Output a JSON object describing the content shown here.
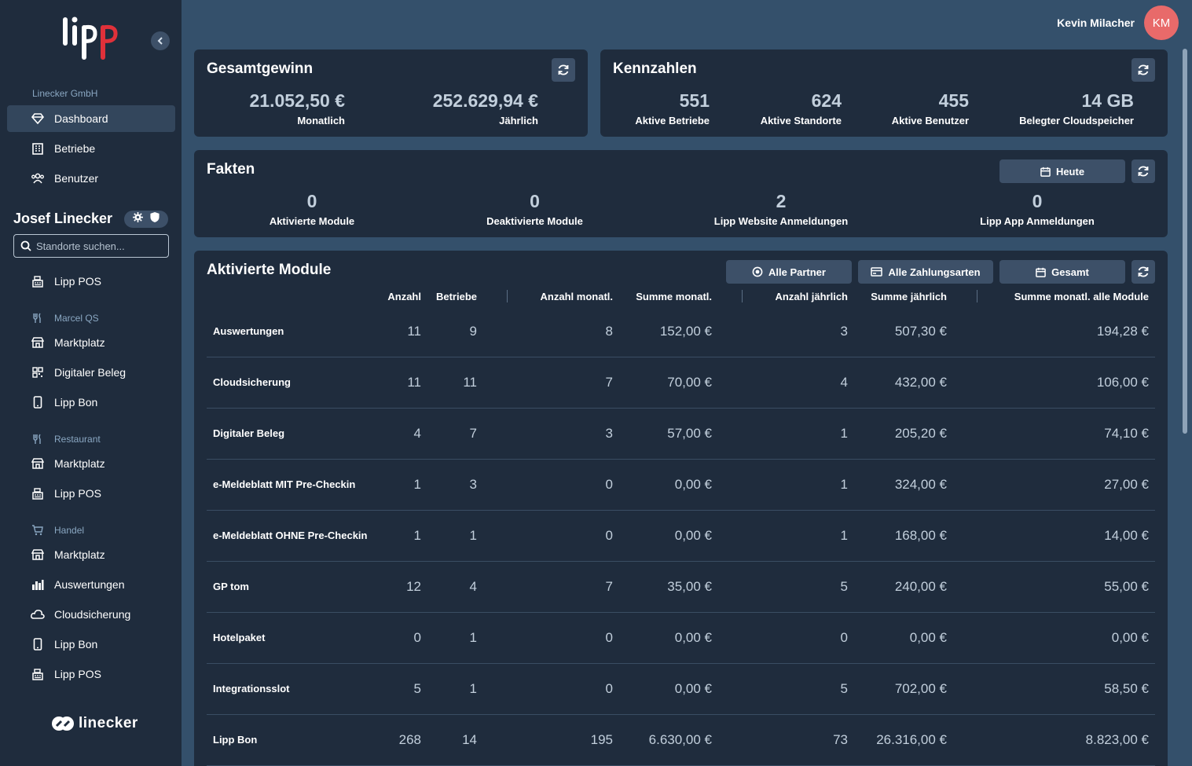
{
  "sidebar": {
    "company": "Linecker GmbH",
    "main_items": [
      {
        "label": "Dashboard",
        "icon": "gem-icon",
        "active": true
      },
      {
        "label": "Betriebe",
        "icon": "building-icon"
      },
      {
        "label": "Benutzer",
        "icon": "users-icon"
      }
    ],
    "user_name": "Josef Linecker",
    "search_placeholder": "Standorte suchen...",
    "top_item": {
      "label": "Lipp POS",
      "icon": "cash-register-icon"
    },
    "groups": [
      {
        "label": "Marcel QS",
        "icon": "utensils-icon",
        "items": [
          {
            "label": "Marktplatz",
            "icon": "store-icon"
          },
          {
            "label": "Digitaler Beleg",
            "icon": "qr-code-icon"
          },
          {
            "label": "Lipp Bon",
            "icon": "mobile-icon"
          }
        ]
      },
      {
        "label": "Restaurant",
        "icon": "utensils-icon",
        "items": [
          {
            "label": "Marktplatz",
            "icon": "store-icon"
          },
          {
            "label": "Lipp POS",
            "icon": "cash-register-icon"
          }
        ]
      },
      {
        "label": "Handel",
        "icon": "cart-icon",
        "items": [
          {
            "label": "Marktplatz",
            "icon": "store-icon"
          },
          {
            "label": "Auswertungen",
            "icon": "bar-chart-icon"
          },
          {
            "label": "Cloudsicherung",
            "icon": "cloud-icon"
          },
          {
            "label": "Lipp Bon",
            "icon": "mobile-icon"
          },
          {
            "label": "Lipp POS",
            "icon": "cash-register-icon"
          }
        ]
      }
    ],
    "footer_logo": "linecker"
  },
  "header": {
    "user_name": "Kevin Milacher",
    "avatar_initials": "KM",
    "avatar_color": "#e86a6a"
  },
  "gesamtgewinn": {
    "title": "Gesamtgewinn",
    "monthly_value": "21.052,50 €",
    "monthly_label": "Monatlich",
    "yearly_value": "252.629,94 €",
    "yearly_label": "Jährlich"
  },
  "kennzahlen": {
    "title": "Kennzahlen",
    "stats": [
      {
        "value": "551",
        "label": "Aktive Betriebe"
      },
      {
        "value": "624",
        "label": "Aktive Standorte"
      },
      {
        "value": "455",
        "label": "Aktive Benutzer"
      },
      {
        "value": "14 GB",
        "label": "Belegter Cloudspeicher"
      }
    ]
  },
  "fakten": {
    "title": "Fakten",
    "filter_label": "Heute",
    "stats": [
      {
        "value": "0",
        "label": "Aktivierte Module"
      },
      {
        "value": "0",
        "label": "Deaktivierte Module"
      },
      {
        "value": "2",
        "label": "Lipp Website Anmeldungen"
      },
      {
        "value": "0",
        "label": "Lipp App Anmeldungen"
      }
    ]
  },
  "module": {
    "title": "Aktivierte Module",
    "filters": {
      "partner": "Alle Partner",
      "payment": "Alle Zahlungsarten",
      "period": "Gesamt"
    },
    "columns": [
      "Anzahl",
      "Betriebe",
      "Anzahl monatl.",
      "Summe monatl.",
      "Anzahl jährlich",
      "Summe jährlich",
      "Summe monatl. alle Module"
    ],
    "rows": [
      {
        "name": "Auswertungen",
        "c": [
          "11",
          "9",
          "8",
          "152,00 €",
          "3",
          "507,30 €",
          "194,28 €"
        ]
      },
      {
        "name": "Cloudsicherung",
        "c": [
          "11",
          "11",
          "7",
          "70,00 €",
          "4",
          "432,00 €",
          "106,00 €"
        ]
      },
      {
        "name": "Digitaler Beleg",
        "c": [
          "4",
          "7",
          "3",
          "57,00 €",
          "1",
          "205,20 €",
          "74,10 €"
        ]
      },
      {
        "name": "e-Meldeblatt MIT Pre-Checkin",
        "c": [
          "1",
          "3",
          "0",
          "0,00 €",
          "1",
          "324,00 €",
          "27,00 €"
        ]
      },
      {
        "name": "e-Meldeblatt OHNE Pre-Checkin",
        "c": [
          "1",
          "1",
          "0",
          "0,00 €",
          "1",
          "168,00 €",
          "14,00 €"
        ]
      },
      {
        "name": "GP tom",
        "c": [
          "12",
          "4",
          "7",
          "35,00 €",
          "5",
          "240,00 €",
          "55,00 €"
        ]
      },
      {
        "name": "Hotelpaket",
        "c": [
          "0",
          "1",
          "0",
          "0,00 €",
          "0",
          "0,00 €",
          "0,00 €"
        ]
      },
      {
        "name": "Integrationsslot",
        "c": [
          "5",
          "1",
          "0",
          "0,00 €",
          "5",
          "702,00 €",
          "58,50 €"
        ]
      },
      {
        "name": "Lipp Bon",
        "c": [
          "268",
          "14",
          "195",
          "6.630,00 €",
          "73",
          "26.316,00 €",
          "8.823,00 €"
        ]
      }
    ]
  }
}
